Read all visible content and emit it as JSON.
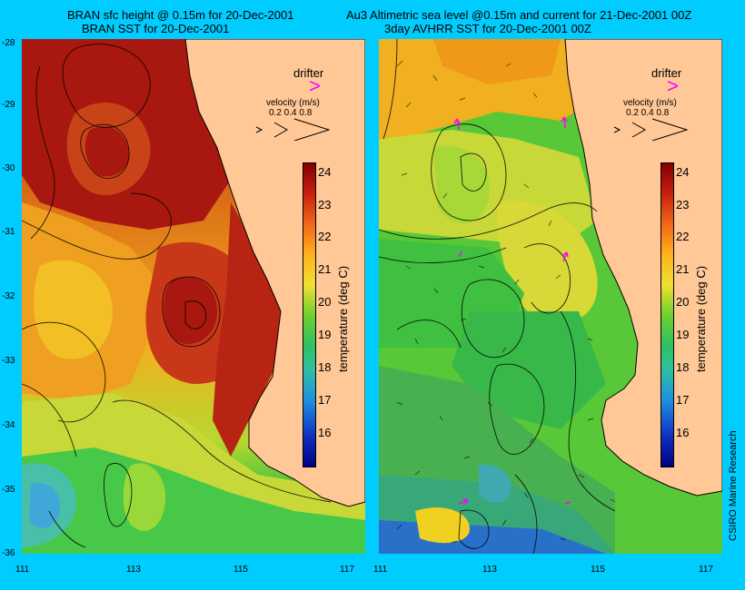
{
  "titles": {
    "left_line1": "BRAN sfc height @ 0.15m for 20-Dec-2001",
    "left_line2": "BRAN SST for 20-Dec-2001",
    "right_line1": "Au3 Altimetric sea level  @0.15m and current for 21-Dec-2001 00Z",
    "right_line2": "3day AVHRR SST for 20-Dec-2001 00Z"
  },
  "y_ticks": [
    "-28",
    "-29",
    "-30",
    "-31",
    "-32",
    "-33",
    "-34",
    "-35",
    "-36"
  ],
  "x_ticks": [
    "111",
    "113",
    "115",
    "117"
  ],
  "legend": {
    "drifter_label": "drifter",
    "velocity_label": "velocity (m/s)",
    "velocity_values": "0.2 0.4 0.8"
  },
  "colorbar": {
    "title": "temperature (deg C)",
    "ticks": [
      "24",
      "23",
      "22",
      "21",
      "20",
      "19",
      "18",
      "17",
      "16"
    ]
  },
  "credit": "CSIRO Marine Research",
  "colors": {
    "background": "#00ccff",
    "land": "#ffc896",
    "warm": "#a01010",
    "mid": "#ffcc00",
    "cool": "#30c030",
    "drifter": "#ff00ff"
  }
}
